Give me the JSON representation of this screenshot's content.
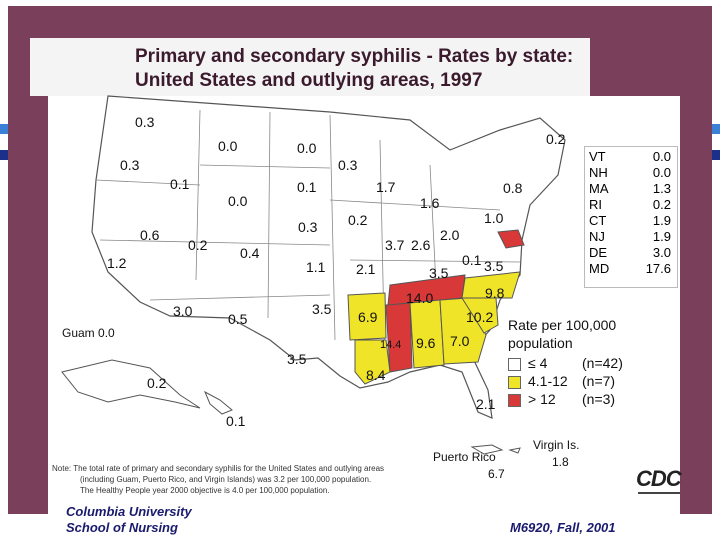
{
  "title": {
    "line1": "Primary and secondary syphilis - Rates by state:",
    "line2": "United States and outlying areas, 1997"
  },
  "colors": {
    "background": "#7a3f5b",
    "low": "#ffffff",
    "mid": "#f0e428",
    "high": "#d93838"
  },
  "chart_data": {
    "type": "choropleth",
    "title": "Primary and secondary syphilis - Rates by state: United States and outlying areas, 1997",
    "unit": "Rate per 100,000 population",
    "state_labels": [
      {
        "value": "0.3"
      },
      {
        "value": "0.0"
      },
      {
        "value": "0.0"
      },
      {
        "value": "0.3"
      },
      {
        "value": "0.1"
      },
      {
        "value": "0.0"
      },
      {
        "value": "0.1"
      },
      {
        "value": "1.7"
      },
      {
        "value": "0.6"
      },
      {
        "value": "0.2"
      },
      {
        "value": "0.4"
      },
      {
        "value": "0.3"
      },
      {
        "value": "0.2"
      },
      {
        "value": "1.6"
      },
      {
        "value": "0.8"
      },
      {
        "value": "1.2"
      },
      {
        "value": "1.1"
      },
      {
        "value": "2.1"
      },
      {
        "value": "3.7"
      },
      {
        "value": "2.6"
      },
      {
        "value": "2.0"
      },
      {
        "value": "1.0"
      },
      {
        "value": "0.1"
      },
      {
        "value": "3.5"
      },
      {
        "value": "3.5"
      },
      {
        "value": "3.0"
      },
      {
        "value": "0.5"
      },
      {
        "value": "3.5"
      },
      {
        "value": "6.9"
      },
      {
        "value": "14.0"
      },
      {
        "value": "9.8"
      },
      {
        "value": "10.2"
      },
      {
        "value": "14.4"
      },
      {
        "value": "9.6"
      },
      {
        "value": "7.0"
      },
      {
        "value": "8.4"
      },
      {
        "value": "3.5"
      },
      {
        "value": "2.1"
      },
      {
        "value": "0.2"
      },
      {
        "value": "0.1"
      },
      {
        "value": "0.2"
      },
      {
        "value": "0.3"
      }
    ],
    "northeast_table": [
      {
        "state": "VT",
        "value": "0.0"
      },
      {
        "state": "NH",
        "value": "0.0"
      },
      {
        "state": "MA",
        "value": "1.3"
      },
      {
        "state": "RI",
        "value": "0.2"
      },
      {
        "state": "CT",
        "value": "1.9"
      },
      {
        "state": "NJ",
        "value": "1.9"
      },
      {
        "state": "DE",
        "value": "3.0"
      },
      {
        "state": "MD",
        "value": "17.6"
      }
    ],
    "outlying": [
      {
        "name": "Guam",
        "value": "0.0"
      },
      {
        "name": "Puerto Rico",
        "value": "6.7"
      },
      {
        "name": "Virgin Is.",
        "value": "1.8"
      }
    ],
    "legend": {
      "title_line1": "Rate per 100,000",
      "title_line2": "population",
      "entries": [
        {
          "range": "≤ 4",
          "count": "(n=42)",
          "color": "#ffffff"
        },
        {
          "range": "4.1-12",
          "count": "(n=7)",
          "color": "#f0e428"
        },
        {
          "range": "> 12",
          "count": "(n=3)",
          "color": "#d93838"
        }
      ]
    }
  },
  "note": {
    "line1": "Note:  The total rate of primary and secondary syphilis for the United States and outlying areas",
    "line2": "(including Guam, Puerto Rico, and Virgin Islands) was 3.2 per 100,000 population.",
    "line3": "The Healthy People year 2000 objective is 4.0 per 100,000 population."
  },
  "logo_text": "CDC",
  "footer": {
    "left1": "Columbia University",
    "left2": "School of Nursing",
    "right": "M6920, Fall, 2001"
  }
}
